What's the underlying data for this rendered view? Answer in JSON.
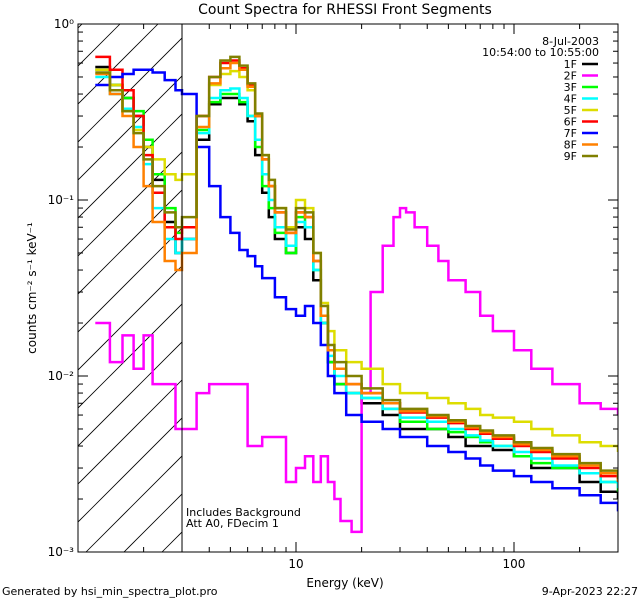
{
  "chart_data": {
    "type": "line",
    "title": "Count Spectra for RHESSI Front Segments",
    "xlabel": "Energy (keV)",
    "ylabel": "counts cm⁻² s⁻¹ keV⁻¹",
    "xscale": "log",
    "yscale": "log",
    "xlim": [
      1,
      300
    ],
    "ylim": [
      0.001,
      1
    ],
    "x_tick_labels": [
      {
        "value": 10,
        "label": "10"
      },
      {
        "value": 100,
        "label": "100"
      }
    ],
    "y_tick_labels": [
      {
        "value": 1,
        "label": "10⁰"
      },
      {
        "value": 0.1,
        "label": "10⁻¹"
      },
      {
        "value": 0.01,
        "label": "10⁻²"
      },
      {
        "value": 0.001,
        "label": "10⁻³"
      }
    ],
    "date": "8-Jul-2003",
    "time_range": "10:54:00 to 10:55:00",
    "hatched_region_xmax": 3,
    "annotations": [
      "Includes Background",
      "Att A0, FDecim 1"
    ],
    "series": [
      {
        "name": "1F",
        "color": "#000000",
        "x": [
          1.2,
          1.4,
          1.6,
          1.8,
          2.0,
          2.2,
          2.5,
          2.8,
          3.0,
          3.5,
          4,
          4.5,
          5,
          5.5,
          6,
          6.5,
          7,
          7.5,
          8,
          9,
          10,
          11,
          12,
          13,
          14,
          15,
          17,
          20,
          25,
          30,
          40,
          50,
          60,
          70,
          80,
          100,
          120,
          150,
          200,
          250,
          300
        ],
        "values": [
          0.57,
          0.45,
          0.38,
          0.3,
          0.2,
          0.13,
          0.075,
          0.05,
          0.06,
          0.22,
          0.35,
          0.38,
          0.38,
          0.35,
          0.28,
          0.18,
          0.11,
          0.08,
          0.06,
          0.05,
          0.07,
          0.06,
          0.035,
          0.02,
          0.012,
          0.009,
          0.008,
          0.007,
          0.006,
          0.005,
          0.005,
          0.0045,
          0.004,
          0.004,
          0.0038,
          0.0035,
          0.003,
          0.003,
          0.0025,
          0.0022,
          0.002
        ]
      },
      {
        "name": "2F",
        "color": "#ff00ff",
        "x": [
          1.2,
          1.4,
          1.6,
          1.8,
          2.0,
          2.2,
          2.5,
          2.8,
          3.0,
          3.5,
          4,
          5,
          6,
          7,
          8,
          9,
          10,
          11,
          12,
          13,
          14,
          15,
          16,
          18,
          20,
          22,
          25,
          28,
          30,
          32,
          35,
          40,
          45,
          50,
          60,
          70,
          80,
          100,
          120,
          150,
          200,
          250,
          300
        ],
        "values": [
          0.02,
          0.012,
          0.017,
          0.011,
          0.017,
          0.009,
          0.009,
          0.005,
          0.005,
          0.008,
          0.009,
          0.009,
          0.004,
          0.0045,
          0.0045,
          0.0025,
          0.003,
          0.0035,
          0.0025,
          0.0035,
          0.0025,
          0.002,
          0.0015,
          0.0013,
          0.008,
          0.03,
          0.055,
          0.08,
          0.09,
          0.085,
          0.07,
          0.055,
          0.045,
          0.035,
          0.03,
          0.022,
          0.018,
          0.014,
          0.011,
          0.009,
          0.007,
          0.0065,
          0.006
        ]
      },
      {
        "name": "3F",
        "color": "#00ff00",
        "x": [
          1.2,
          1.4,
          1.6,
          1.8,
          2.0,
          2.2,
          2.5,
          2.8,
          3.0,
          3.5,
          4,
          4.5,
          5,
          5.5,
          6,
          6.5,
          7,
          7.5,
          8,
          9,
          10,
          11,
          12,
          13,
          14,
          15,
          17,
          20,
          25,
          30,
          40,
          50,
          60,
          70,
          80,
          100,
          120,
          150,
          200,
          250,
          300
        ],
        "values": [
          0.55,
          0.45,
          0.38,
          0.32,
          0.22,
          0.14,
          0.09,
          0.065,
          0.07,
          0.25,
          0.36,
          0.4,
          0.4,
          0.36,
          0.3,
          0.2,
          0.12,
          0.09,
          0.065,
          0.05,
          0.08,
          0.07,
          0.04,
          0.02,
          0.012,
          0.009,
          0.008,
          0.0075,
          0.0065,
          0.0055,
          0.005,
          0.0048,
          0.0045,
          0.0042,
          0.004,
          0.0035,
          0.0032,
          0.003,
          0.0028,
          0.0025,
          0.0022
        ]
      },
      {
        "name": "4F",
        "color": "#00ffff",
        "x": [
          1.2,
          1.4,
          1.6,
          1.8,
          2.0,
          2.2,
          2.5,
          2.8,
          3.0,
          3.5,
          4,
          4.5,
          5,
          5.5,
          6,
          6.5,
          7,
          7.5,
          8,
          9,
          10,
          11,
          12,
          13,
          14,
          15,
          17,
          20,
          25,
          30,
          40,
          50,
          60,
          70,
          80,
          100,
          120,
          150,
          200,
          250,
          300
        ],
        "values": [
          0.5,
          0.4,
          0.33,
          0.26,
          0.16,
          0.09,
          0.06,
          0.05,
          0.06,
          0.24,
          0.38,
          0.42,
          0.43,
          0.38,
          0.3,
          0.22,
          0.14,
          0.1,
          0.07,
          0.055,
          0.075,
          0.07,
          0.04,
          0.02,
          0.013,
          0.01,
          0.008,
          0.0075,
          0.0065,
          0.0058,
          0.0055,
          0.005,
          0.0046,
          0.0043,
          0.004,
          0.0037,
          0.0034,
          0.0031,
          0.0028,
          0.0025,
          0.0023
        ]
      },
      {
        "name": "5F",
        "color": "#dddd00",
        "x": [
          1.2,
          1.4,
          1.6,
          1.8,
          2.0,
          2.2,
          2.5,
          2.8,
          3.0,
          3.5,
          4,
          4.5,
          5,
          5.5,
          6,
          6.5,
          7,
          7.5,
          8,
          9,
          10,
          11,
          12,
          13,
          14,
          15,
          17,
          20,
          25,
          30,
          40,
          50,
          60,
          70,
          80,
          100,
          120,
          150,
          200,
          250,
          300
        ],
        "values": [
          0.55,
          0.45,
          0.32,
          0.25,
          0.2,
          0.17,
          0.14,
          0.13,
          0.14,
          0.3,
          0.45,
          0.52,
          0.54,
          0.5,
          0.42,
          0.3,
          0.18,
          0.12,
          0.09,
          0.07,
          0.1,
          0.09,
          0.05,
          0.026,
          0.018,
          0.014,
          0.012,
          0.011,
          0.009,
          0.008,
          0.0075,
          0.007,
          0.0065,
          0.006,
          0.0058,
          0.0055,
          0.005,
          0.0046,
          0.0042,
          0.004,
          0.0037
        ]
      },
      {
        "name": "6F",
        "color": "#ff0000",
        "x": [
          1.2,
          1.4,
          1.6,
          1.8,
          2.0,
          2.2,
          2.5,
          2.8,
          3.0,
          3.5,
          4,
          4.5,
          5,
          5.5,
          6,
          6.5,
          7,
          7.5,
          8,
          9,
          10,
          11,
          12,
          13,
          14,
          15,
          17,
          20,
          25,
          30,
          40,
          50,
          60,
          70,
          80,
          100,
          120,
          150,
          200,
          250,
          300
        ],
        "values": [
          0.65,
          0.55,
          0.42,
          0.3,
          0.18,
          0.11,
          0.07,
          0.06,
          0.07,
          0.3,
          0.5,
          0.6,
          0.62,
          0.56,
          0.45,
          0.3,
          0.17,
          0.12,
          0.085,
          0.065,
          0.085,
          0.08,
          0.045,
          0.022,
          0.014,
          0.011,
          0.009,
          0.008,
          0.007,
          0.0062,
          0.0058,
          0.0054,
          0.005,
          0.0047,
          0.0044,
          0.004,
          0.0037,
          0.0034,
          0.003,
          0.0027,
          0.0025
        ]
      },
      {
        "name": "7F",
        "color": "#0000ff",
        "x": [
          1.2,
          1.4,
          1.6,
          1.8,
          2.0,
          2.2,
          2.5,
          2.8,
          3.0,
          3.5,
          4,
          4.5,
          5,
          5.5,
          6,
          6.5,
          7,
          8,
          9,
          10,
          11,
          12,
          13,
          14,
          15,
          17,
          20,
          25,
          30,
          40,
          50,
          60,
          70,
          80,
          100,
          120,
          150,
          200,
          250,
          300
        ],
        "values": [
          0.45,
          0.5,
          0.52,
          0.55,
          0.55,
          0.53,
          0.48,
          0.42,
          0.4,
          0.2,
          0.12,
          0.08,
          0.065,
          0.052,
          0.048,
          0.042,
          0.036,
          0.028,
          0.024,
          0.022,
          0.025,
          0.02,
          0.015,
          0.01,
          0.008,
          0.006,
          0.0055,
          0.005,
          0.0045,
          0.004,
          0.0037,
          0.0034,
          0.0031,
          0.0029,
          0.0027,
          0.0025,
          0.0023,
          0.0021,
          0.0019,
          0.0017
        ]
      },
      {
        "name": "8F",
        "color": "#ff8000",
        "x": [
          1.2,
          1.4,
          1.6,
          1.8,
          2.0,
          2.2,
          2.5,
          2.8,
          3.0,
          3.5,
          4,
          4.5,
          5,
          5.5,
          6,
          6.5,
          7,
          7.5,
          8,
          9,
          10,
          11,
          12,
          13,
          14,
          15,
          17,
          20,
          25,
          30,
          40,
          50,
          60,
          70,
          80,
          100,
          120,
          150,
          200,
          250,
          300
        ],
        "values": [
          0.52,
          0.4,
          0.3,
          0.2,
          0.12,
          0.075,
          0.045,
          0.04,
          0.05,
          0.26,
          0.46,
          0.56,
          0.6,
          0.55,
          0.44,
          0.3,
          0.17,
          0.12,
          0.085,
          0.065,
          0.085,
          0.08,
          0.045,
          0.022,
          0.014,
          0.011,
          0.009,
          0.008,
          0.007,
          0.0063,
          0.0059,
          0.0055,
          0.0051,
          0.0048,
          0.0045,
          0.0041,
          0.0038,
          0.0035,
          0.0031,
          0.0028,
          0.0025
        ]
      },
      {
        "name": "9F",
        "color": "#808000",
        "x": [
          1.2,
          1.4,
          1.6,
          1.8,
          2.0,
          2.2,
          2.5,
          2.8,
          3.0,
          3.5,
          4,
          4.5,
          5,
          5.5,
          6,
          6.5,
          7,
          7.5,
          8,
          9,
          10,
          11,
          12,
          13,
          14,
          15,
          17,
          20,
          25,
          30,
          40,
          50,
          60,
          70,
          80,
          100,
          120,
          150,
          200,
          250,
          300
        ],
        "values": [
          0.53,
          0.42,
          0.32,
          0.24,
          0.17,
          0.12,
          0.085,
          0.07,
          0.08,
          0.3,
          0.5,
          0.62,
          0.65,
          0.58,
          0.46,
          0.31,
          0.18,
          0.13,
          0.09,
          0.068,
          0.09,
          0.085,
          0.05,
          0.025,
          0.015,
          0.012,
          0.01,
          0.0085,
          0.0073,
          0.0065,
          0.006,
          0.0056,
          0.0052,
          0.0049,
          0.0046,
          0.0042,
          0.0039,
          0.0036,
          0.0032,
          0.0029,
          0.0026
        ]
      }
    ]
  },
  "footer": {
    "generated_by": "Generated by hsi_min_spectra_plot.pro",
    "timestamp": "9-Apr-2023 22:27"
  }
}
